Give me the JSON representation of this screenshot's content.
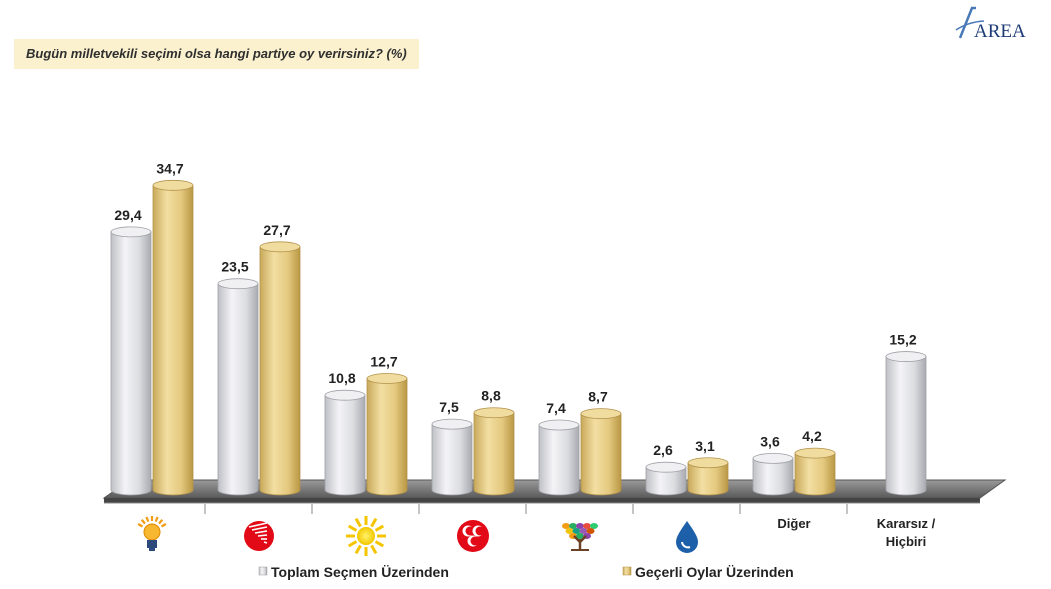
{
  "header": {
    "question": "Bugün milletvekili seçimi olsa hangi partiye oy verirsiniz? (%)",
    "logo_text": "AREA"
  },
  "chart_data": {
    "type": "bar",
    "title": "Bugün milletvekili seçimi olsa hangi partiye oy verirsiniz? (%)",
    "categories": [
      {
        "name": "AK Parti",
        "label": "",
        "icon": "lightbulb-icon"
      },
      {
        "name": "CHP",
        "label": "",
        "icon": "six-arrows-icon"
      },
      {
        "name": "İYİ Parti",
        "label": "",
        "icon": "sun-icon"
      },
      {
        "name": "MHP",
        "label": "",
        "icon": "three-crescents-icon"
      },
      {
        "name": "HDP",
        "label": "",
        "icon": "tree-icon"
      },
      {
        "name": "Saadet",
        "label": "",
        "icon": "water-drop-icon"
      },
      {
        "name": "Diğer",
        "label": "Diğer",
        "icon": ""
      },
      {
        "name": "Kararsız / Hiçbiri",
        "label": "Kararsız / Hiçbiri",
        "icon": ""
      }
    ],
    "series": [
      {
        "name": "Toplam Seçmen Üzerinden",
        "color": "#e2e2e6",
        "values": [
          29.4,
          23.5,
          10.8,
          7.5,
          7.4,
          2.6,
          3.6,
          15.2
        ]
      },
      {
        "name": "Geçerli Oylar Üzerinden",
        "color": "#e8cf8a",
        "values": [
          34.7,
          27.7,
          12.7,
          8.8,
          8.7,
          3.1,
          4.2,
          null
        ]
      }
    ],
    "value_labels": [
      [
        "29,4",
        "23,5",
        "10,8",
        "7,5",
        "7,4",
        "2,6",
        "3,6",
        "15,2"
      ],
      [
        "34,7",
        "27,7",
        "12,7",
        "8,8",
        "8,7",
        "3,1",
        "4,2",
        ""
      ]
    ],
    "ylim": [
      0,
      40
    ],
    "legend_position": "bottom",
    "grid": false
  }
}
